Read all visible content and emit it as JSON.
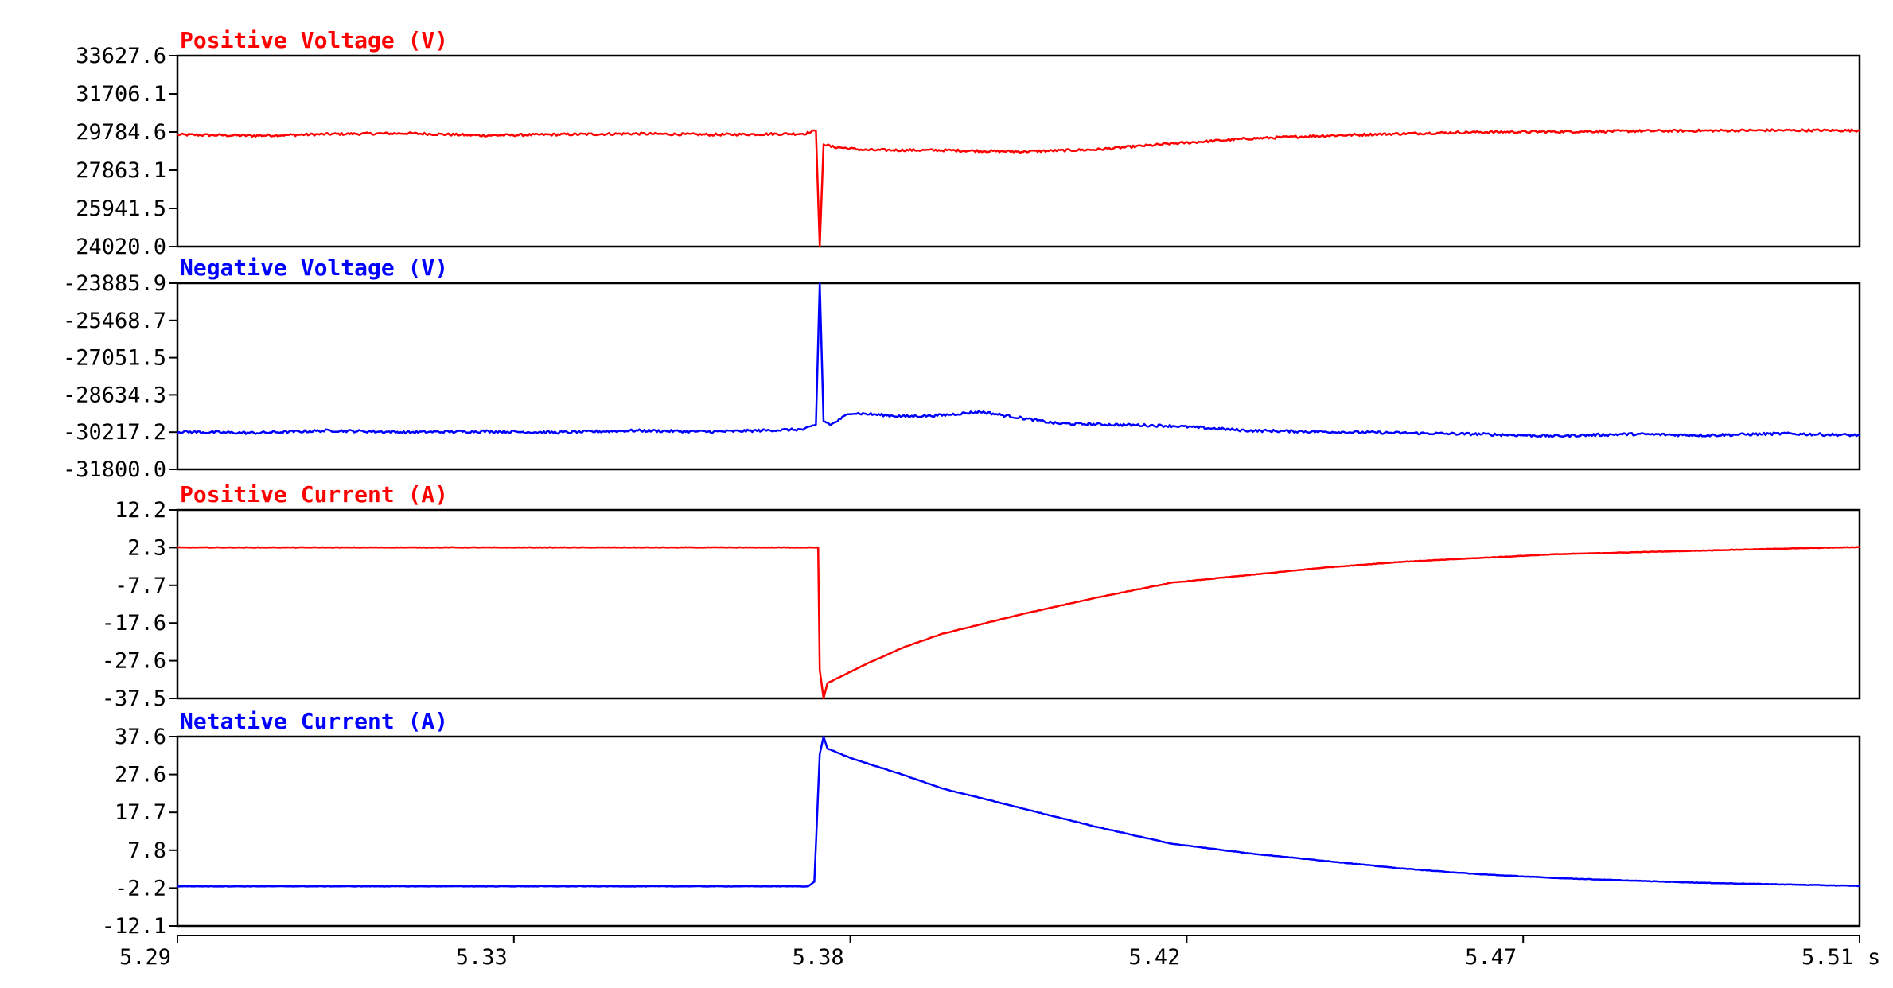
{
  "chart_data": [
    {
      "type": "line",
      "title": "Positive Voltage (V)",
      "color": "#ff0000",
      "yticks": [
        "33627.6",
        "31706.1",
        "29784.6",
        "27863.1",
        "25941.5",
        "24020.0"
      ],
      "ylim": [
        24020.0,
        33627.6
      ],
      "series": [
        {
          "points": [
            [
              5.29,
              29650
            ],
            [
              5.3,
              29600
            ],
            [
              5.31,
              29680
            ],
            [
              5.32,
              29720
            ],
            [
              5.33,
              29610
            ],
            [
              5.34,
              29660
            ],
            [
              5.35,
              29700
            ],
            [
              5.36,
              29650
            ],
            [
              5.372,
              29700
            ],
            [
              5.3735,
              29850
            ],
            [
              5.374,
              24020
            ],
            [
              5.3745,
              29200
            ],
            [
              5.3755,
              29050
            ],
            [
              5.38,
              28880
            ],
            [
              5.39,
              28870
            ],
            [
              5.4,
              28800
            ],
            [
              5.41,
              28900
            ],
            [
              5.42,
              29200
            ],
            [
              5.43,
              29450
            ],
            [
              5.44,
              29600
            ],
            [
              5.45,
              29700
            ],
            [
              5.46,
              29780
            ],
            [
              5.47,
              29800
            ],
            [
              5.48,
              29830
            ],
            [
              5.49,
              29850
            ],
            [
              5.5,
              29870
            ],
            [
              5.51,
              29860
            ]
          ],
          "noise": 60
        }
      ]
    },
    {
      "type": "line",
      "title": "Negative Voltage (V)",
      "color": "#0000ff",
      "yticks": [
        "-23885.9",
        "-25468.7",
        "-27051.5",
        "-28634.3",
        "-30217.2",
        "-31800.0"
      ],
      "ylim": [
        -31800.0,
        -23885.9
      ],
      "series": [
        {
          "points": [
            [
              5.29,
              -30200
            ],
            [
              5.3,
              -30250
            ],
            [
              5.31,
              -30150
            ],
            [
              5.32,
              -30220
            ],
            [
              5.33,
              -30180
            ],
            [
              5.34,
              -30230
            ],
            [
              5.35,
              -30150
            ],
            [
              5.36,
              -30200
            ],
            [
              5.372,
              -30100
            ],
            [
              5.3735,
              -29900
            ],
            [
              5.374,
              -23885.9
            ],
            [
              5.3745,
              -29750
            ],
            [
              5.3755,
              -29900
            ],
            [
              5.378,
              -29400
            ],
            [
              5.385,
              -29550
            ],
            [
              5.39,
              -29500
            ],
            [
              5.395,
              -29350
            ],
            [
              5.4,
              -29600
            ],
            [
              5.405,
              -29850
            ],
            [
              5.42,
              -29950
            ],
            [
              5.43,
              -30150
            ],
            [
              5.44,
              -30200
            ],
            [
              5.45,
              -30250
            ],
            [
              5.46,
              -30300
            ],
            [
              5.47,
              -30380
            ],
            [
              5.48,
              -30300
            ],
            [
              5.49,
              -30350
            ],
            [
              5.5,
              -30280
            ],
            [
              5.51,
              -30350
            ]
          ],
          "noise": 55
        }
      ]
    },
    {
      "type": "line",
      "title": "Positive Current (A)",
      "color": "#ff0000",
      "yticks": [
        "12.2",
        "2.3",
        "-7.7",
        "-17.6",
        "-27.6",
        "-37.5"
      ],
      "ylim": [
        -37.5,
        12.2
      ],
      "series": [
        {
          "points": [
            [
              5.29,
              2.3
            ],
            [
              5.3738,
              2.3
            ],
            [
              5.374,
              -30.0
            ],
            [
              5.3745,
              -37.5
            ],
            [
              5.375,
              -33.5
            ],
            [
              5.38,
              -28.5
            ],
            [
              5.385,
              -24.0
            ],
            [
              5.39,
              -20.5
            ],
            [
              5.4,
              -15.5
            ],
            [
              5.41,
              -11.0
            ],
            [
              5.42,
              -7.0
            ],
            [
              5.43,
              -5.0
            ],
            [
              5.44,
              -3.0
            ],
            [
              5.45,
              -1.5
            ],
            [
              5.46,
              -0.5
            ],
            [
              5.47,
              0.5
            ],
            [
              5.48,
              1.0
            ],
            [
              5.49,
              1.5
            ],
            [
              5.5,
              2.0
            ],
            [
              5.51,
              2.4
            ]
          ],
          "noise": 0.06
        }
      ]
    },
    {
      "type": "line",
      "title": "Netative Current (A)",
      "color": "#0000ff",
      "yticks": [
        "37.6",
        "27.6",
        "17.7",
        "7.8",
        "-2.2",
        "-12.1"
      ],
      "ylim": [
        -12.1,
        37.6
      ],
      "series": [
        {
          "points": [
            [
              5.29,
              -1.7
            ],
            [
              5.3725,
              -1.7
            ],
            [
              5.3733,
              -0.5
            ],
            [
              5.374,
              33.0
            ],
            [
              5.3745,
              37.6
            ],
            [
              5.375,
              34.5
            ],
            [
              5.378,
              32.0
            ],
            [
              5.385,
              27.5
            ],
            [
              5.39,
              24.0
            ],
            [
              5.4,
              19.0
            ],
            [
              5.41,
              14.0
            ],
            [
              5.42,
              9.5
            ],
            [
              5.43,
              7.0
            ],
            [
              5.44,
              5.0
            ],
            [
              5.45,
              3.0
            ],
            [
              5.46,
              1.5
            ],
            [
              5.47,
              0.5
            ],
            [
              5.48,
              -0.2
            ],
            [
              5.49,
              -0.8
            ],
            [
              5.5,
              -1.2
            ],
            [
              5.51,
              -1.6
            ]
          ],
          "noise": 0.06
        }
      ]
    }
  ],
  "x_axis": {
    "xlim": [
      5.29,
      5.51
    ],
    "ticks": [
      {
        "value": 5.29,
        "label": "5.29"
      },
      {
        "value": 5.334,
        "label": "5.33"
      },
      {
        "value": 5.378,
        "label": "5.38"
      },
      {
        "value": 5.422,
        "label": "5.42"
      },
      {
        "value": 5.466,
        "label": "5.47"
      },
      {
        "value": 5.51,
        "label": "5.51"
      }
    ],
    "unit": "s"
  }
}
